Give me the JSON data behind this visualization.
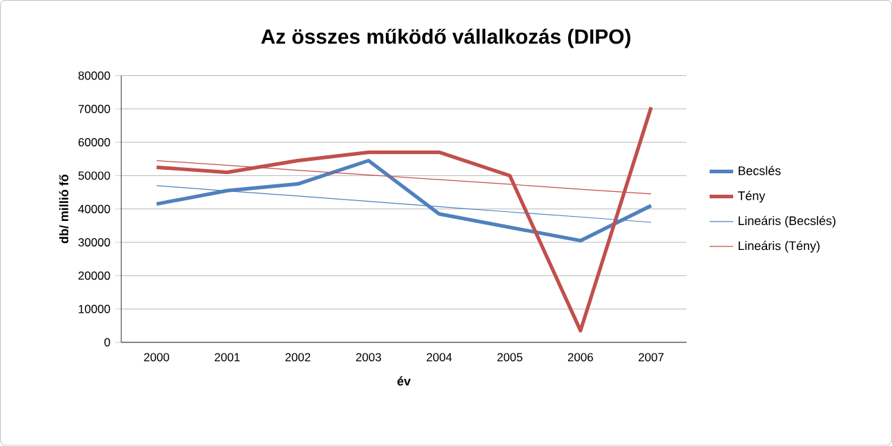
{
  "chart_data": {
    "type": "line",
    "title": "Az összes működő vállalkozás (DIPO)",
    "xlabel": "év",
    "ylabel": "db/ millió fő",
    "categories": [
      "2000",
      "2001",
      "2002",
      "2003",
      "2004",
      "2005",
      "2006",
      "2007"
    ],
    "series": [
      {
        "name": "Becslés",
        "color": "#4f81bd",
        "values": [
          41500,
          45500,
          47500,
          54500,
          38500,
          34500,
          30500,
          41000
        ]
      },
      {
        "name": "Tény",
        "color": "#c0504d",
        "values": [
          52500,
          51000,
          54500,
          57000,
          57000,
          50000,
          3500,
          70500
        ]
      },
      {
        "name": "Lineáris (Becslés)",
        "type": "line",
        "color": "#4f81bd",
        "values": [
          47000,
          45400,
          43900,
          42300,
          40700,
          39100,
          37600,
          36000
        ]
      },
      {
        "name": "Lineáris (Tény)",
        "type": "line",
        "color": "#c0504d",
        "values": [
          54500,
          53100,
          51600,
          50200,
          48800,
          47400,
          45900,
          44500
        ]
      }
    ],
    "ylim": [
      0,
      80000
    ],
    "yticks": [
      0,
      10000,
      20000,
      30000,
      40000,
      50000,
      60000,
      70000,
      80000
    ],
    "grid": "y",
    "legend": "right",
    "marker": "none",
    "line_style": "solid"
  }
}
